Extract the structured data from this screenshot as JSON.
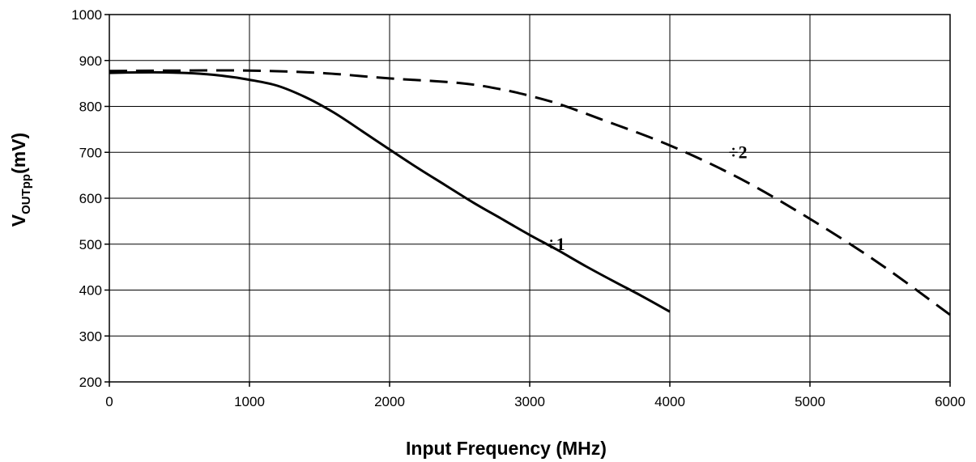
{
  "chart_data": {
    "type": "line",
    "xlabel": "Input Frequency (MHz)",
    "ylabel": {
      "main": "V",
      "sub": "OUTpp",
      "suffix": "(mV)"
    },
    "xlim": [
      0,
      6000
    ],
    "ylim": [
      200,
      1000
    ],
    "x_ticks": [
      0,
      1000,
      2000,
      3000,
      4000,
      5000,
      6000
    ],
    "y_ticks": [
      200,
      300,
      400,
      500,
      600,
      700,
      800,
      900,
      1000
    ],
    "grid": true,
    "legend": "none",
    "series": [
      {
        "name": "÷1",
        "style": "solid",
        "x": [
          0,
          200,
          400,
          600,
          800,
          1000,
          1200,
          1400,
          1600,
          1800,
          2000,
          2200,
          2400,
          2600,
          2800,
          3000,
          3200,
          3400,
          3600,
          3800,
          4000
        ],
        "y": [
          873,
          874,
          874,
          872,
          867,
          858,
          845,
          820,
          787,
          747,
          706,
          666,
          628,
          590,
          555,
          520,
          487,
          452,
          419,
          387,
          353
        ]
      },
      {
        "name": "÷2",
        "style": "dashed",
        "x": [
          0,
          500,
          1000,
          1500,
          2000,
          2500,
          2800,
          3000,
          3200,
          3500,
          4000,
          4500,
          5000,
          5500,
          6000
        ],
        "y": [
          877,
          878,
          878,
          873,
          861,
          851,
          837,
          823,
          806,
          773,
          715,
          643,
          555,
          457,
          346
        ]
      }
    ]
  }
}
